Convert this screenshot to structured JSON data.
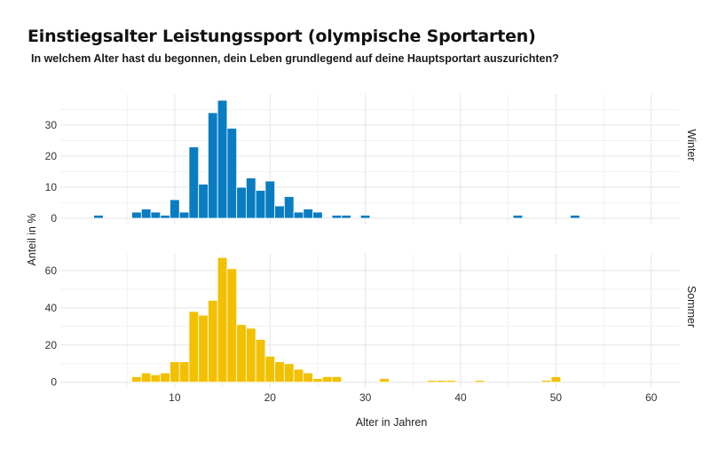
{
  "title": "Einstiegsalter Leistungssport (olympische Sportarten)",
  "subtitle": "In welchem Alter hast du begonnen, dein Leben grundlegend auf deine Hauptsportart auszurichten?",
  "chart_data": {
    "type": "bar",
    "title": "Einstiegsalter Leistungssport (olympische Sportarten)",
    "subtitle": "In welchem Alter hast du begonnen, dein Leben grundlegend auf deine Hauptsportart auszurichten?",
    "xlabel": "Alter in Jahren",
    "ylabel": "Anteil in %",
    "xlim": [
      -2,
      63
    ],
    "x_ticks": [
      10,
      20,
      30,
      40,
      50,
      60
    ],
    "grid": true,
    "legend": "none",
    "panels": [
      {
        "name": "Winter",
        "color": "#0a7dc2",
        "ylim": [
          -2,
          40
        ],
        "y_ticks": [
          0,
          10,
          20,
          30
        ],
        "x": [
          2,
          6,
          7,
          8,
          9,
          10,
          11,
          12,
          13,
          14,
          15,
          16,
          17,
          18,
          19,
          20,
          21,
          22,
          23,
          24,
          25,
          27,
          28,
          30,
          46,
          52
        ],
        "values": [
          1,
          2,
          3,
          2,
          1,
          6,
          2,
          23,
          11,
          34,
          38,
          29,
          10,
          13,
          9,
          12,
          4,
          7,
          2,
          3,
          2,
          1,
          1,
          1,
          1,
          1
        ]
      },
      {
        "name": "Sommer",
        "color": "#f2c000",
        "ylim": [
          -3,
          69
        ],
        "y_ticks": [
          0,
          20,
          40,
          60
        ],
        "x": [
          6,
          7,
          8,
          9,
          10,
          11,
          12,
          13,
          14,
          15,
          16,
          17,
          18,
          19,
          20,
          21,
          22,
          23,
          24,
          25,
          26,
          27,
          32,
          37,
          38,
          39,
          42,
          49,
          50
        ],
        "values": [
          3,
          5,
          4,
          5,
          11,
          11,
          38,
          36,
          44,
          67,
          61,
          31,
          29,
          23,
          14,
          11,
          10,
          7,
          5,
          2,
          3,
          3,
          2,
          1,
          1,
          1,
          1,
          1,
          3
        ]
      }
    ]
  }
}
